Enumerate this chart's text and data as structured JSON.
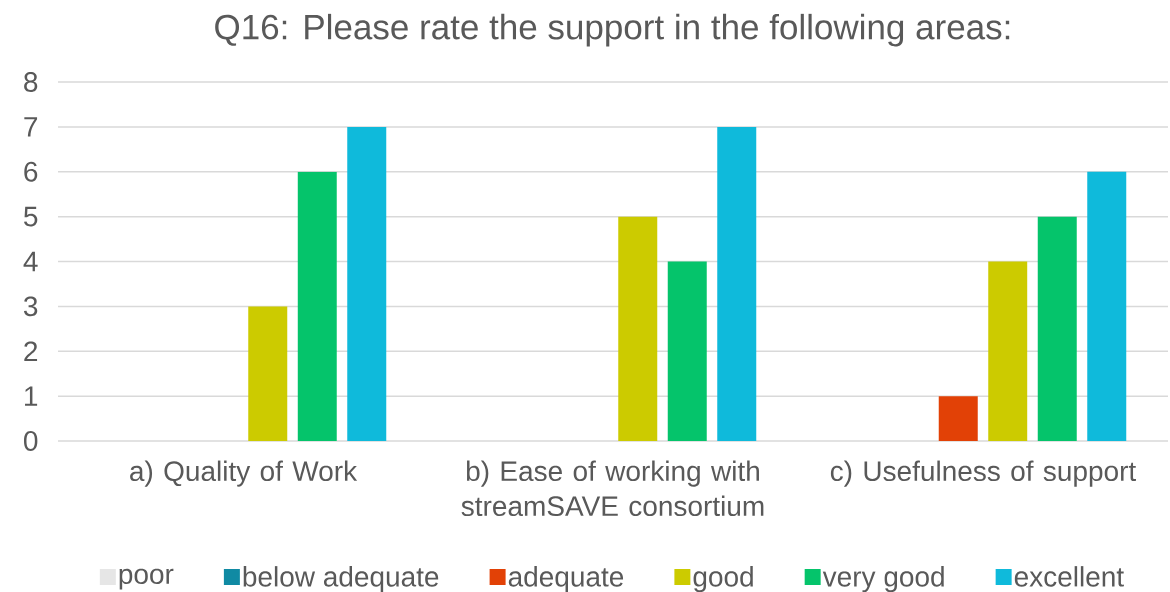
{
  "chart_data": {
    "type": "bar",
    "title": "Q16: Please rate the support in the following areas:",
    "categories": [
      "a) Quality of Work",
      "b) Ease of working with streamSAVE consortium",
      "c) Usefulness of support"
    ],
    "series": [
      {
        "name": "poor",
        "color": "#e6e6e6",
        "values": [
          0,
          0,
          0
        ]
      },
      {
        "name": "below adequate",
        "color": "#108aa3",
        "values": [
          0,
          0,
          0
        ]
      },
      {
        "name": "adequate",
        "color": "#e24106",
        "values": [
          0,
          0,
          1
        ]
      },
      {
        "name": "good",
        "color": "#cccb00",
        "values": [
          3,
          5,
          4
        ]
      },
      {
        "name": "very good",
        "color": "#05c46b",
        "values": [
          6,
          4,
          5
        ]
      },
      {
        "name": "excellent",
        "color": "#0fbadb",
        "values": [
          7,
          7,
          6
        ]
      }
    ],
    "ylim": [
      0,
      8
    ],
    "yticks": [
      0,
      1,
      2,
      3,
      4,
      5,
      6,
      7,
      8
    ],
    "grid": "y",
    "legend": "bottom"
  }
}
